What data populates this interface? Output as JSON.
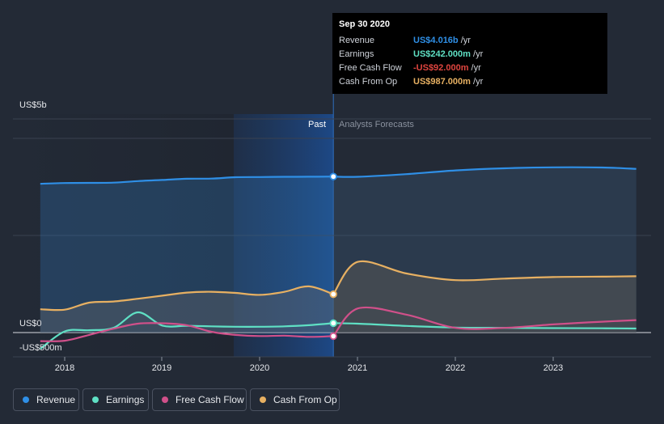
{
  "chart_data": {
    "type": "line",
    "currency": "US$",
    "y_tick_labels": [
      "US$5b",
      "US$0",
      "-US$500m"
    ],
    "y_ticks": [
      5000,
      0,
      -500
    ],
    "ylim": [
      -750,
      5500
    ],
    "xlim": [
      2017.25,
      2023.85
    ],
    "x_tick_labels": [
      "2018",
      "2019",
      "2020",
      "2021",
      "2022",
      "2023"
    ],
    "x_ticks": [
      2018,
      2019,
      2020,
      2021,
      2022,
      2023
    ],
    "past_end": 2020.75,
    "shade_start": 2019.73,
    "past_label": "Past",
    "forecast_label": "Analysts Forecasts",
    "series": [
      {
        "name": "Revenue",
        "color": "#2f8fe6",
        "points": [
          [
            2017.75,
            3830
          ],
          [
            2018.0,
            3850
          ],
          [
            2018.25,
            3855
          ],
          [
            2018.5,
            3860
          ],
          [
            2018.75,
            3900
          ],
          [
            2019.0,
            3930
          ],
          [
            2019.25,
            3960
          ],
          [
            2019.5,
            3965
          ],
          [
            2019.75,
            4000
          ],
          [
            2020.0,
            4005
          ],
          [
            2020.25,
            4010
          ],
          [
            2020.5,
            4012
          ],
          [
            2020.75,
            4016
          ]
        ],
        "forecast": [
          [
            2020.75,
            4016
          ],
          [
            2021.0,
            4010
          ],
          [
            2021.5,
            4080
          ],
          [
            2022.0,
            4175
          ],
          [
            2022.5,
            4230
          ],
          [
            2023.0,
            4255
          ],
          [
            2023.5,
            4250
          ],
          [
            2023.85,
            4215
          ]
        ]
      },
      {
        "name": "Earnings",
        "color": "#5fe0c4",
        "points": [
          [
            2017.75,
            -420
          ],
          [
            2018.0,
            30
          ],
          [
            2018.25,
            60
          ],
          [
            2018.5,
            120
          ],
          [
            2018.75,
            520
          ],
          [
            2019.0,
            180
          ],
          [
            2019.25,
            175
          ],
          [
            2019.5,
            160
          ],
          [
            2019.75,
            150
          ],
          [
            2020.0,
            150
          ],
          [
            2020.25,
            160
          ],
          [
            2020.5,
            190
          ],
          [
            2020.75,
            242
          ]
        ],
        "forecast": [
          [
            2020.75,
            242
          ],
          [
            2021.0,
            230
          ],
          [
            2021.5,
            170
          ],
          [
            2022.0,
            130
          ],
          [
            2022.5,
            120
          ],
          [
            2023.0,
            115
          ],
          [
            2023.5,
            110
          ],
          [
            2023.85,
            105
          ]
        ]
      },
      {
        "name": "Free Cash Flow",
        "color": "#d0508a",
        "points": [
          [
            2017.75,
            -220
          ],
          [
            2018.0,
            -210
          ],
          [
            2018.25,
            -60
          ],
          [
            2018.5,
            100
          ],
          [
            2018.75,
            230
          ],
          [
            2019.0,
            240
          ],
          [
            2019.25,
            190
          ],
          [
            2019.5,
            20
          ],
          [
            2019.75,
            -60
          ],
          [
            2020.0,
            -90
          ],
          [
            2020.25,
            -80
          ],
          [
            2020.5,
            -110
          ],
          [
            2020.75,
            -92
          ]
        ],
        "forecast": [
          [
            2020.75,
            -92
          ],
          [
            2021.0,
            620
          ],
          [
            2021.5,
            460
          ],
          [
            2022.0,
            120
          ],
          [
            2022.5,
            120
          ],
          [
            2023.0,
            210
          ],
          [
            2023.5,
            280
          ],
          [
            2023.85,
            320
          ]
        ]
      },
      {
        "name": "Cash From Op",
        "color": "#e7b062",
        "points": [
          [
            2017.75,
            600
          ],
          [
            2018.0,
            590
          ],
          [
            2018.25,
            770
          ],
          [
            2018.5,
            800
          ],
          [
            2018.75,
            870
          ],
          [
            2019.0,
            950
          ],
          [
            2019.25,
            1030
          ],
          [
            2019.5,
            1050
          ],
          [
            2019.75,
            1020
          ],
          [
            2020.0,
            970
          ],
          [
            2020.25,
            1050
          ],
          [
            2020.5,
            1190
          ],
          [
            2020.75,
            987
          ]
        ],
        "forecast": [
          [
            2020.75,
            987
          ],
          [
            2021.0,
            1820
          ],
          [
            2021.5,
            1520
          ],
          [
            2022.0,
            1350
          ],
          [
            2022.5,
            1390
          ],
          [
            2023.0,
            1430
          ],
          [
            2023.5,
            1440
          ],
          [
            2023.85,
            1450
          ]
        ]
      }
    ]
  },
  "tooltip": {
    "date": "Sep 30 2020",
    "rows": [
      {
        "label": "Revenue",
        "value": "US$4.016b",
        "unit": " /yr",
        "color": "#2f8fe6"
      },
      {
        "label": "Earnings",
        "value": "US$242.000m",
        "unit": " /yr",
        "color": "#5fe0c4"
      },
      {
        "label": "Free Cash Flow",
        "value": "-US$92.000m",
        "unit": " /yr",
        "color": "#e0453f"
      },
      {
        "label": "Cash From Op",
        "value": "US$987.000m",
        "unit": " /yr",
        "color": "#e7b062"
      }
    ]
  },
  "legend": [
    {
      "label": "Revenue",
      "color": "#2f8fe6"
    },
    {
      "label": "Earnings",
      "color": "#5fe0c4"
    },
    {
      "label": "Free Cash Flow",
      "color": "#d0508a"
    },
    {
      "label": "Cash From Op",
      "color": "#e7b062"
    }
  ]
}
